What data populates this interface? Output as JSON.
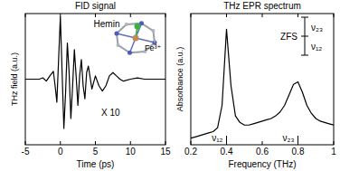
{
  "chart_data": [
    {
      "type": "line",
      "title": "FID signal",
      "x_label": "Time (ps)",
      "y_label": "THz field (a.u.)",
      "x": [
        -5,
        -4,
        -3,
        -2.5,
        -2,
        -1.5,
        -1,
        -0.75,
        -0.5,
        -0.25,
        0,
        0.25,
        0.5,
        0.75,
        1,
        1.25,
        1.5,
        1.75,
        2,
        2.25,
        2.5,
        2.75,
        3,
        3.25,
        3.5,
        3.75,
        4,
        4.5,
        5,
        5.5,
        6,
        6.5,
        7,
        7.5,
        8,
        8.5,
        9,
        10,
        11,
        12,
        13,
        14,
        15
      ],
      "series": [
        {
          "name": "FID",
          "color": "#000000",
          "values": [
            0,
            0,
            0,
            0.02,
            -0.03,
            0.05,
            0.12,
            -0.1,
            -0.35,
            0.3,
            0.95,
            0.1,
            -0.75,
            -0.2,
            0.55,
            0.1,
            -0.6,
            -0.1,
            0.45,
            0.05,
            -0.4,
            0.05,
            0.3,
            -0.1,
            -0.3,
            0.1,
            0.2,
            -0.15,
            0.05,
            -0.1,
            -0.18,
            -0.1,
            0.05,
            0.1,
            0.05,
            0,
            -0.03,
            0,
            0.02,
            0,
            0,
            0,
            0
          ]
        }
      ],
      "xlim": [
        -5,
        15
      ],
      "xticks": [
        -5,
        0,
        5,
        10,
        15
      ],
      "ylim": [
        -1,
        1
      ],
      "tick_labels": "x",
      "annotations": [
        {
          "text": "Hemin"
        },
        {
          "text": "Fe³⁺"
        },
        {
          "text": "X 10"
        }
      ]
    },
    {
      "type": "line",
      "title": "THz EPR spectrum",
      "x_label": "Frequency (THz)",
      "y_label": "Absorbance (a.u.)",
      "x": [
        0.2,
        0.225,
        0.25,
        0.275,
        0.3,
        0.325,
        0.35,
        0.375,
        0.4,
        0.425,
        0.45,
        0.475,
        0.5,
        0.525,
        0.55,
        0.575,
        0.6,
        0.625,
        0.65,
        0.675,
        0.7,
        0.725,
        0.75,
        0.775,
        0.8,
        0.825,
        0.85,
        0.875,
        0.9,
        0.925,
        0.95,
        0.975,
        1
      ],
      "series": [
        {
          "name": "Absorbance",
          "color": "#000000",
          "values": [
            0.05,
            0.06,
            0.07,
            0.08,
            0.09,
            0.1,
            0.13,
            0.3,
            0.88,
            0.45,
            0.22,
            0.17,
            0.15,
            0.15,
            0.16,
            0.17,
            0.18,
            0.19,
            0.2,
            0.22,
            0.25,
            0.3,
            0.38,
            0.46,
            0.48,
            0.4,
            0.3,
            0.24,
            0.2,
            0.18,
            0.17,
            0.16,
            0.15
          ]
        }
      ],
      "xlim": [
        0.2,
        1
      ],
      "xticks": [
        0.2,
        0.4,
        0.6,
        0.8,
        1
      ],
      "ylim": [
        0,
        1
      ],
      "tick_labels": "x",
      "annotations": [
        {
          "text": "ν₁₂",
          "x": 0.4
        },
        {
          "text": "ν₂₃",
          "x": 0.8
        },
        {
          "text": "ZFS"
        },
        {
          "text": "ν₂₃"
        },
        {
          "text": "ν₁₂"
        }
      ]
    }
  ]
}
